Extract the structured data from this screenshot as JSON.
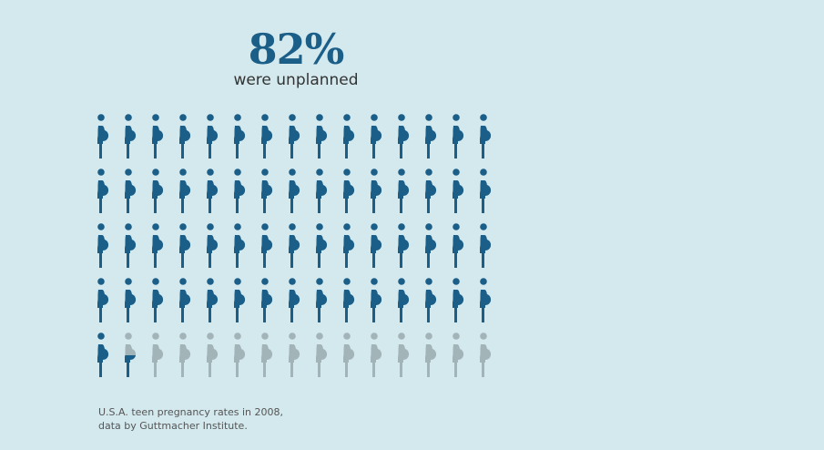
{
  "headline": {
    "percent": "82%",
    "subtitle": "were unplanned"
  },
  "caption": {
    "line1": "U.S.A. teen pregnancy rates in 2008,",
    "line2": "data by Guttmacher Institute."
  },
  "chart_data": {
    "type": "pictograph",
    "total_icons": 75,
    "rows": 5,
    "columns": 15,
    "highlighted_percent": 82,
    "icon": "pregnant-woman-icon",
    "colors": {
      "highlight": "#1b5e88",
      "remainder": "#a3b4b8"
    }
  }
}
